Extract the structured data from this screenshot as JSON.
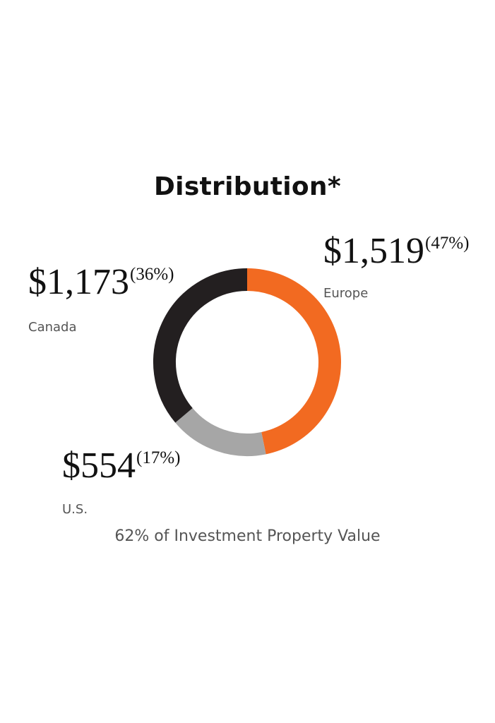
{
  "colors": {
    "europe": "#f26a21",
    "us": "#a6a6a6",
    "canada": "#231f20"
  },
  "chart_data": {
    "type": "pie",
    "title": "Distribution*",
    "subtitle": "62% of Investment Property Value",
    "slices": [
      {
        "label": "Europe",
        "value": 1519,
        "value_text": "$1,519",
        "percent": 47,
        "percent_text": "(47%)"
      },
      {
        "label": "U.S.",
        "value": 554,
        "value_text": "$554",
        "percent": 17,
        "percent_text": "(17%)"
      },
      {
        "label": "Canada",
        "value": 1173,
        "value_text": "$1,173",
        "percent": 36,
        "percent_text": "(36%)"
      }
    ]
  }
}
